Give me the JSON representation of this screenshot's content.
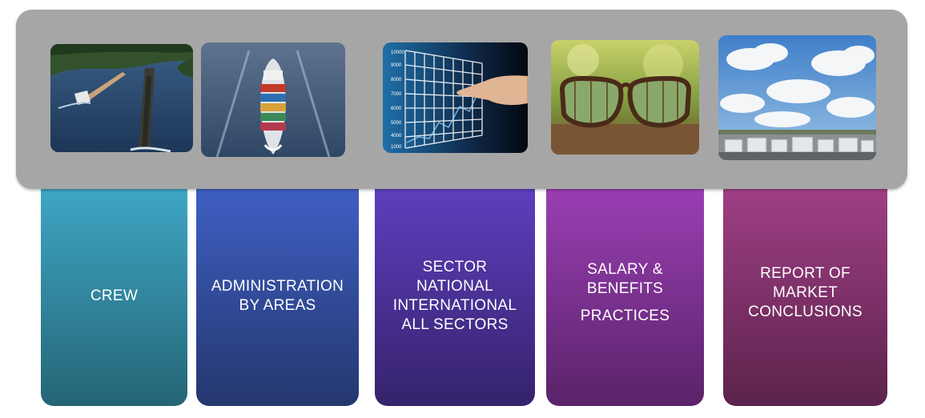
{
  "cards": [
    {
      "lines": [
        "CREW"
      ],
      "color_top": "#3fa7c6",
      "color_bottom": "#246575",
      "image": "river-barges-image"
    },
    {
      "lines": [
        "ADMINISTRATION",
        "BY AREAS"
      ],
      "color_top": "#3f5fc4",
      "color_bottom": "#24376e",
      "image": "container-ship-image"
    },
    {
      "lines": [
        "SECTOR",
        "NATIONAL",
        "INTERNATIONAL",
        "ALL SECTORS"
      ],
      "color_top": "#5e3fbf",
      "color_bottom": "#35236c",
      "image": "touchscreen-chart-image"
    },
    {
      "lines": [
        "SALARY &",
        "BENEFITS"
      ],
      "lines2": [
        "PRACTICES"
      ],
      "color_top": "#9a3fb5",
      "color_bottom": "#5a2369",
      "image": "eyeglasses-forest-image"
    },
    {
      "lines": [
        "REPORT OF",
        "MARKET",
        "CONCLUSIONS"
      ],
      "color_top": "#a03f86",
      "color_bottom": "#5b234b",
      "image": "sky-storage-tanks-image"
    }
  ],
  "tray_color": "#a6a6a6",
  "chart_tick_labels": [
    "10000",
    "9000",
    "8000",
    "7000",
    "6000",
    "5000",
    "4000",
    "1000"
  ]
}
